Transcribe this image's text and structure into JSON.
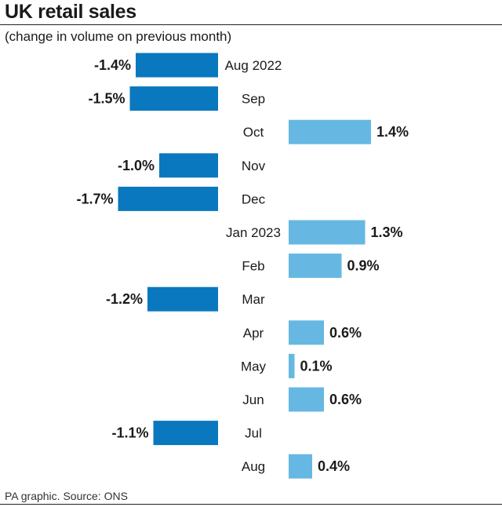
{
  "header": {
    "title": "UK retail sales",
    "subtitle": "(change in volume on previous month)"
  },
  "footer": {
    "source": "PA graphic. Source: ONS"
  },
  "colors": {
    "negative": "#0a78be",
    "positive": "#66b8e2",
    "text": "#1a1a1a"
  },
  "chart_data": {
    "type": "bar",
    "orientation": "horizontal",
    "categories": [
      "Aug 2022",
      "Sep",
      "Oct",
      "Nov",
      "Dec",
      "Jan 2023",
      "Feb",
      "Mar",
      "Apr",
      "May",
      "Jun",
      "Jul",
      "Aug"
    ],
    "values": [
      -1.4,
      -1.5,
      1.4,
      -1.0,
      -1.7,
      1.3,
      0.9,
      -1.2,
      0.6,
      0.1,
      0.6,
      -1.1,
      0.4
    ],
    "labels": [
      "-1.4%",
      "-1.5%",
      "1.4%",
      "-1.0%",
      "-1.7%",
      "1.3%",
      "0.9%",
      "-1.2%",
      "0.6%",
      "0.1%",
      "0.6%",
      "-1.1%",
      "0.4%"
    ],
    "title": "UK retail sales",
    "subtitle": "(change in volume on previous month)",
    "unit": "%",
    "grid": false
  }
}
